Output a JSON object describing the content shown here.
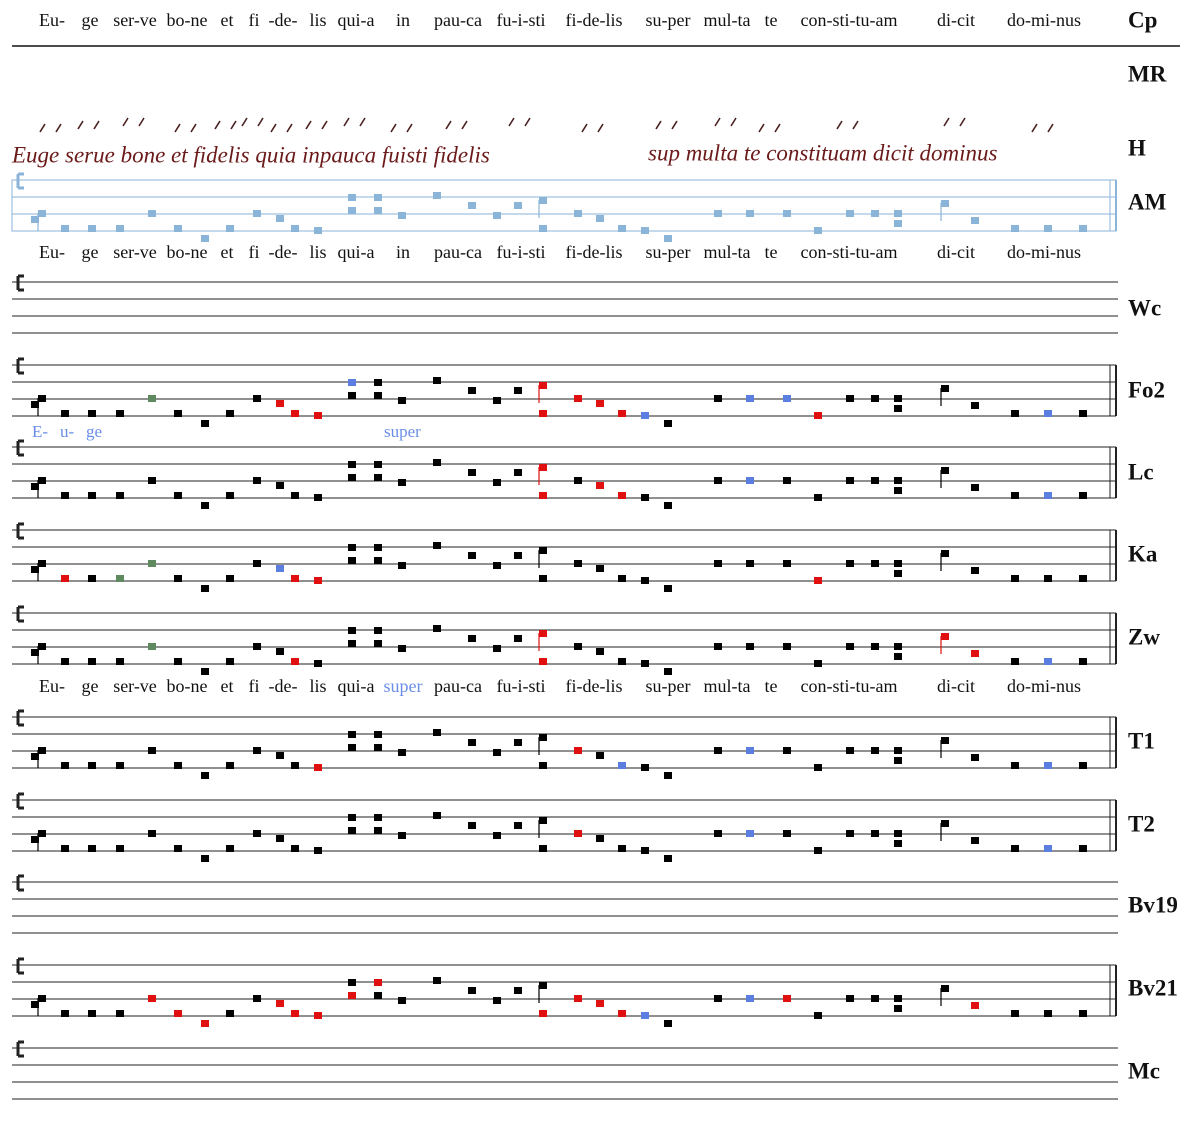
{
  "lyrics": [
    [
      "Eu-",
      "ge",
      "ser-ve",
      "bo-ne",
      "et",
      "fi",
      "-de-",
      "lis",
      "qui-a",
      "in",
      "pau-ca",
      "fu-i-sti",
      "fi-de-lis",
      "su-per",
      "mul-ta",
      "te",
      "con-sti-tu-am",
      "di-cit",
      "do-mi-nus"
    ],
    [
      "Eu-",
      "ge",
      "ser-ve",
      "bo-ne",
      "et",
      "fi",
      "-de-",
      "lis",
      "qui-a",
      "in",
      "pau-ca",
      "fu-i-sti",
      "fi-de-lis",
      "su-per",
      "mul-ta",
      "te",
      "con-sti-tu-am",
      "di-cit",
      "do-mi-nus"
    ],
    [
      "Eu-",
      "ge",
      "ser-ve",
      "bo-ne",
      "et",
      "fi",
      "-de-",
      "lis",
      "qui-a",
      "super",
      "pau-ca",
      "fu-i-sti",
      "fi-de-lis",
      "su-per",
      "mul-ta",
      "te",
      "con-sti-tu-am",
      "di-cit",
      "do-mi-nus"
    ]
  ],
  "sigla": [
    "Cp",
    "MR",
    "H",
    "AM",
    "Wc",
    "Fo2",
    "Lc",
    "Ka",
    "Zw",
    "T1",
    "T2",
    "Bv19",
    "Bv21",
    "Mc"
  ],
  "manuscript": [
    "Euge serue bone et fidelis quia inpauca fuisti fidelis",
    "sup multa te constituam dicit dominus"
  ],
  "annotations": {
    "euge": [
      "E-",
      "u-",
      "ge"
    ],
    "super": "super"
  }
}
